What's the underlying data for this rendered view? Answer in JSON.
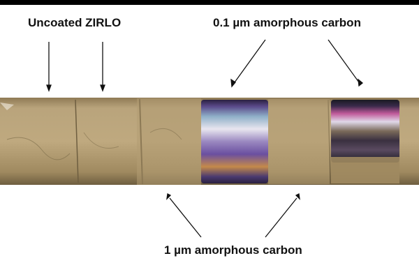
{
  "labels": {
    "uncoated": "Uncoated ZIRLO",
    "thin_coating": "0.1 µm amorphous carbon",
    "thick_coating": "1 µm amorphous carbon"
  },
  "colors": {
    "background": "#ffffff",
    "rod_base": "#b8a27a",
    "rod_dark": "#8f7a55",
    "coating_iridescent": [
      "#3a2a5a",
      "#6a4fa0",
      "#c0b8d8",
      "#e8e6ef",
      "#4a6a8a",
      "#d08a3a",
      "#2a2040"
    ],
    "text": "#111111"
  }
}
